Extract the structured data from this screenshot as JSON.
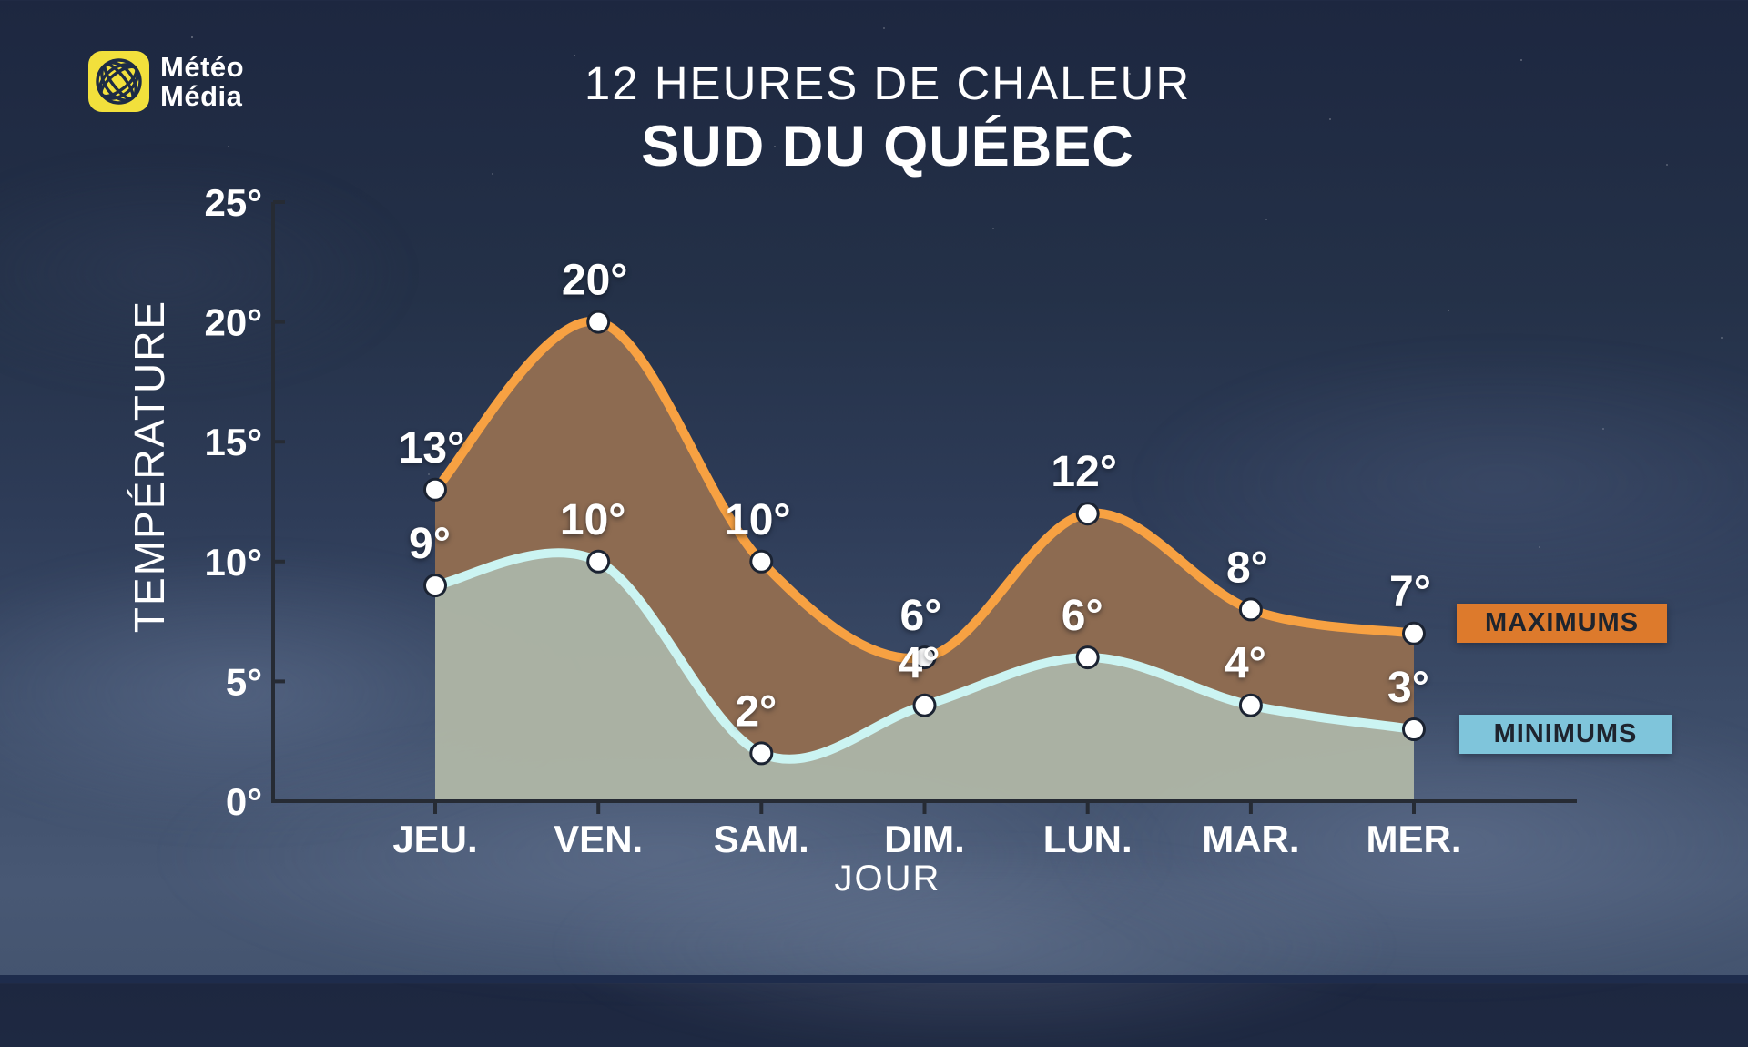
{
  "logo": {
    "icon": "meteomedia-globe-icon",
    "line1": "Météo",
    "line2": "Média"
  },
  "title": {
    "line1": "12 HEURES DE CHALEUR",
    "line2": "SUD DU QUÉBEC"
  },
  "legend": {
    "max_label": "MAXIMUMS",
    "min_label": "MINIMUMS",
    "max_bg_color": "#DD7A2C",
    "min_bg_color": "#7FC5DB",
    "text_color": "#1E242E"
  },
  "chart_data": {
    "type": "area",
    "title": "12 HEURES DE CHALEUR",
    "subtitle": "SUD DU QUÉBEC",
    "categories": [
      "JEU.",
      "VEN.",
      "SAM.",
      "DIM.",
      "LUN.",
      "MAR.",
      "MER."
    ],
    "series": [
      {
        "name": "MAXIMUMS",
        "values": [
          13,
          20,
          10,
          6,
          12,
          8,
          7
        ],
        "line_color": "#F7A142"
      },
      {
        "name": "MINIMUMS",
        "values": [
          9,
          10,
          2,
          4,
          6,
          4,
          3
        ],
        "line_color": "#CBF4F2"
      }
    ],
    "xlabel": "JOUR",
    "ylabel": "TEMPÉRATURE",
    "ylim": [
      0,
      25
    ],
    "yticks": [
      0,
      5,
      10,
      15,
      20,
      25
    ],
    "value_suffix": "°",
    "grid": false,
    "legend_position": "right",
    "fill_between_color": "#8D6B51",
    "fill_below_color": "#ADB5A5",
    "marker_fill": "#FFFFFF",
    "marker_stroke": "#1B2332",
    "axis_color": "#262B34",
    "label_color": "#FFFFFF"
  }
}
